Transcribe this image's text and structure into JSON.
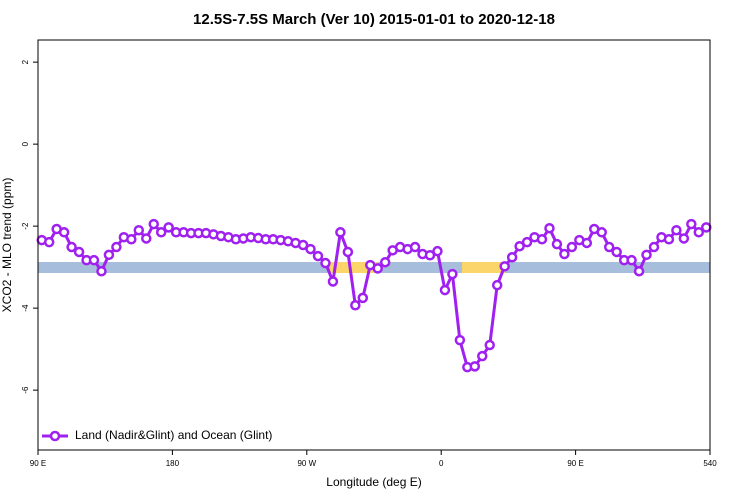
{
  "chart_data": {
    "type": "line",
    "title": "12.5S-7.5S March (Ver 10)   2015-01-01 to 2020-12-18",
    "x_label": "Longitude (deg E)",
    "y_label": "XCO2 - MLO trend (ppm)",
    "x": [
      92.5,
      97.5,
      102.5,
      107.5,
      112.5,
      117.5,
      122.5,
      127.5,
      132.5,
      137.5,
      142.5,
      147.5,
      152.5,
      157.5,
      162.5,
      167.5,
      172.5,
      177.5,
      182.5,
      187.5,
      192.5,
      197.5,
      202.5,
      207.5,
      212.5,
      217.5,
      222.5,
      227.5,
      232.5,
      237.5,
      242.5,
      247.5,
      252.5,
      257.5,
      262.5,
      267.5,
      272.5,
      277.5,
      282.5,
      287.5,
      292.5,
      297.5,
      302.5,
      307.5,
      312.5,
      317.5,
      322.5,
      327.5,
      332.5,
      337.5,
      342.5,
      347.5,
      352.5,
      357.5,
      362.5,
      367.5,
      372.5,
      377.5,
      382.5,
      387.5,
      392.5,
      397.5,
      402.5,
      407.5,
      412.5,
      417.5,
      422.5,
      427.5,
      432.5,
      437.5,
      442.5,
      447.5,
      452.5,
      457.5,
      462.5,
      467.5,
      472.5,
      477.5,
      482.5,
      487.5,
      492.5,
      497.5,
      502.5,
      507.5,
      512.5,
      517.5,
      522.5,
      527.5,
      532.5,
      537.5
    ],
    "series": [
      {
        "name": "Land (Nadir&Glint) and Ocean (Glint)",
        "color": "#a020f0",
        "values": [
          -2.34,
          -2.39,
          -2.07,
          -2.15,
          -2.51,
          -2.63,
          -2.83,
          -2.83,
          -3.1,
          -2.7,
          -2.51,
          -2.27,
          -2.32,
          -2.1,
          -2.3,
          -1.95,
          -2.15,
          -2.03,
          -2.15,
          -2.15,
          -2.17,
          -2.17,
          -2.17,
          -2.2,
          -2.24,
          -2.27,
          -2.32,
          -2.3,
          -2.27,
          -2.29,
          -2.32,
          -2.32,
          -2.34,
          -2.37,
          -2.41,
          -2.46,
          -2.56,
          -2.73,
          -2.9,
          -3.35,
          -2.15,
          -2.63,
          -3.93,
          -3.75,
          -2.95,
          -3.03,
          -2.88,
          -2.59,
          -2.51,
          -2.56,
          -2.51,
          -2.68,
          -2.71,
          -2.61,
          -3.56,
          -3.17,
          -4.78,
          -5.44,
          -5.42,
          -5.17,
          -4.9,
          -3.44,
          -2.98,
          -2.76,
          -2.49,
          -2.39,
          -2.27,
          -2.32,
          -2.05,
          -2.44,
          -2.68,
          -2.51,
          -2.34,
          -2.41,
          -2.07,
          -2.15,
          -2.51,
          -2.63,
          -2.83,
          -2.83,
          -3.1,
          -2.7,
          -2.51,
          -2.27,
          -2.32,
          -2.1,
          -2.3,
          -1.95,
          -2.15,
          -2.03
        ]
      }
    ],
    "xlim": [
      90,
      540
    ],
    "xticks": [
      {
        "value": 90,
        "label": "90 E"
      },
      180,
      {
        "value": 270,
        "label": "90 W"
      },
      {
        "value": 360,
        "label": "0"
      },
      {
        "value": 450,
        "label": "90 E"
      },
      540
    ],
    "ylim": [
      -7.46,
      2.54
    ],
    "yticks": [
      2,
      0,
      -2,
      -4,
      -6
    ],
    "legend": "bottom-left"
  }
}
